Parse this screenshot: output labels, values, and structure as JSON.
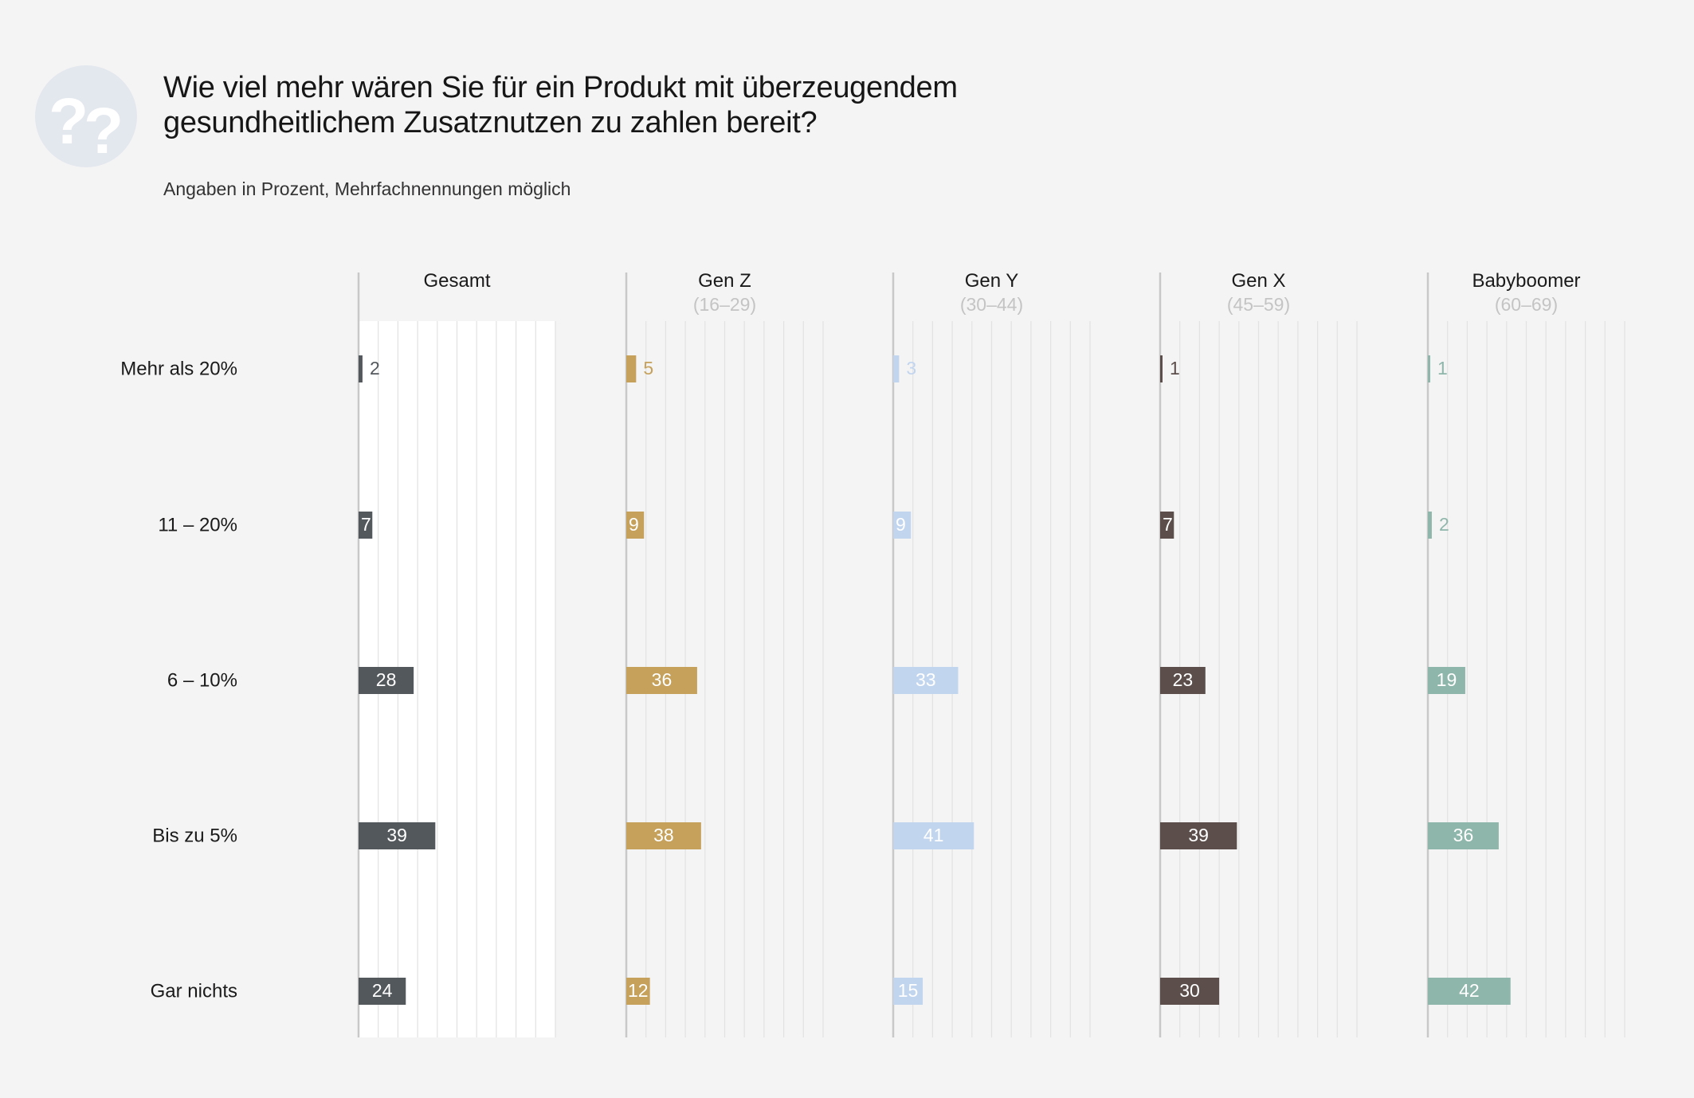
{
  "header": {
    "title_line1": "Wie viel mehr wären Sie für ein Produkt mit überzeugendem",
    "title_line2": "gesundheitlichem Zusatznutzen zu zahlen bereit?",
    "subtitle": "Angaben in Prozent, Mehrfachnennungen möglich",
    "logo_icon": "question-marks-icon"
  },
  "colors": {
    "background": "#f5f4f5",
    "gesamt_panel": "#ffffff",
    "logo_circle": "#e3e7ee"
  },
  "chart_data": {
    "type": "bar",
    "orientation": "horizontal",
    "categories": [
      "Mehr als 20%",
      "11 – 20%",
      "6 – 10%",
      "Bis zu 5%",
      "Gar nichts"
    ],
    "xlim": [
      0,
      100
    ],
    "grid": true,
    "series": [
      {
        "name": "Gesamt",
        "age": "",
        "color": "#53585c",
        "label_color": "#ffffff",
        "values": [
          2,
          7,
          28,
          39,
          24
        ]
      },
      {
        "name": "Gen Z",
        "age": "(16–29)",
        "color": "#c5a15b",
        "label_color": "#ffffff",
        "values": [
          5,
          9,
          36,
          38,
          12
        ]
      },
      {
        "name": "Gen Y",
        "age": "(30–44)",
        "color": "#c2d5ef",
        "label_color": "#ffffff",
        "values": [
          3,
          9,
          33,
          41,
          15
        ]
      },
      {
        "name": "Gen X",
        "age": "(45–59)",
        "color": "#5c4f4b",
        "label_color": "#ffffff",
        "values": [
          1,
          7,
          23,
          39,
          30
        ]
      },
      {
        "name": "Babyboomer",
        "age": "(60–69)",
        "color": "#8fb6aa",
        "label_color": "#ffffff",
        "values": [
          1,
          2,
          19,
          36,
          42
        ]
      }
    ]
  }
}
